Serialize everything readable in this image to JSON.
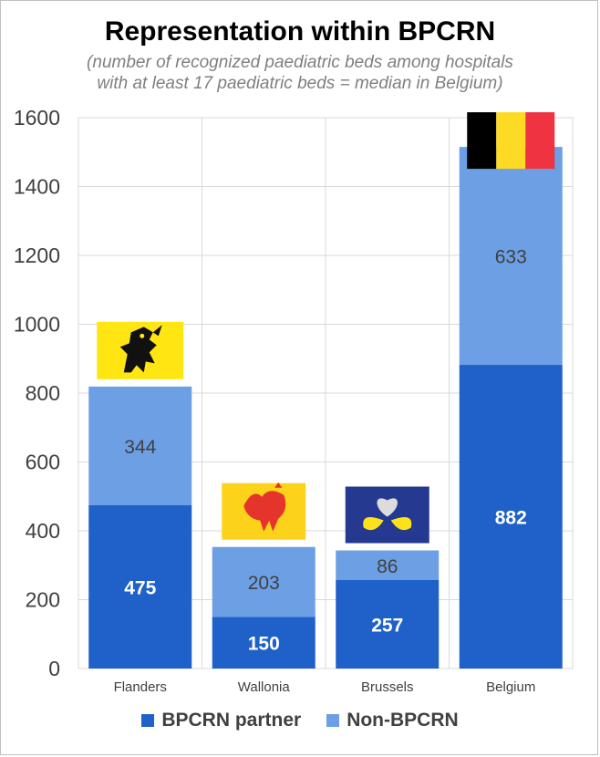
{
  "title": "Representation within BPCRN",
  "subtitle_line1": "(number of recognized paediatric beds among hospitals",
  "subtitle_line2": "with at least 17 paediatric beds = median in Belgium)",
  "colors": {
    "partner": "#1f61c9",
    "non_partner": "#6c9fe4",
    "grid": "#d9d9d9"
  },
  "chart_data": {
    "type": "bar",
    "stacked": true,
    "categories": [
      "Flanders",
      "Wallonia",
      "Brussels",
      "Belgium"
    ],
    "series": [
      {
        "name": "BPCRN partner",
        "values": [
          475,
          150,
          257,
          882
        ]
      },
      {
        "name": "Non-BPCRN",
        "values": [
          344,
          203,
          86,
          633
        ]
      }
    ],
    "title": "Representation within BPCRN",
    "ylim": [
      0,
      1600
    ],
    "yticks": [
      0,
      200,
      400,
      600,
      800,
      1000,
      1200,
      1400,
      1600
    ],
    "grid": true,
    "legend_position": "bottom",
    "flag_icons": [
      "flanders-lion-flag-icon",
      "wallonia-rooster-flag-icon",
      "brussels-iris-flag-icon",
      "belgium-flag-icon"
    ]
  }
}
